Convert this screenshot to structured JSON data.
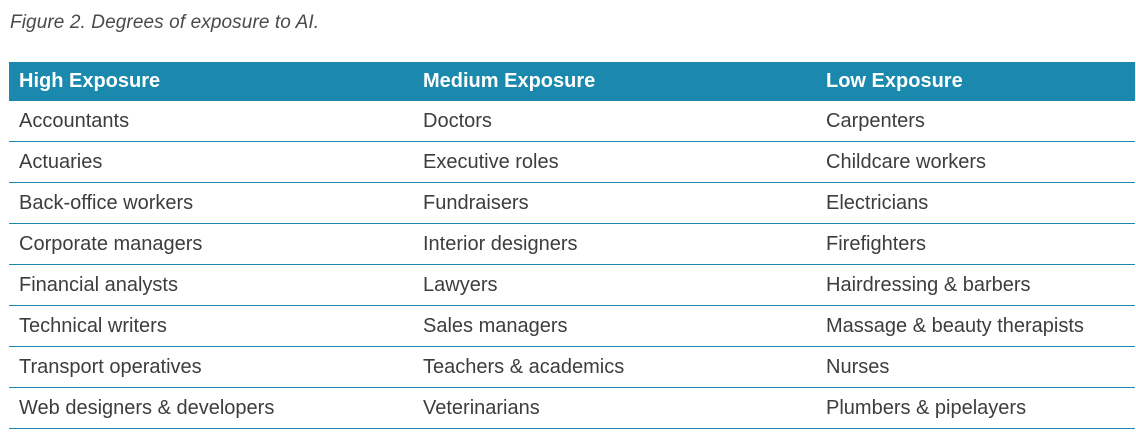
{
  "caption": "Figure 2. Degrees of exposure to AI.",
  "accent_color": "#1b88ad",
  "table": {
    "headers": [
      "High Exposure",
      "Medium Exposure",
      "Low Exposure"
    ],
    "rows": [
      [
        "Accountants",
        "Doctors",
        "Carpenters"
      ],
      [
        "Actuaries",
        "Executive roles",
        "Childcare workers"
      ],
      [
        "Back-office workers",
        "Fundraisers",
        "Electricians"
      ],
      [
        "Corporate managers",
        "Interior designers",
        "Firefighters"
      ],
      [
        "Financial analysts",
        "Lawyers",
        "Hairdressing & barbers"
      ],
      [
        "Technical writers",
        "Sales managers",
        "Massage & beauty therapists"
      ],
      [
        "Transport operatives",
        "Teachers & academics",
        "Nurses"
      ],
      [
        "Web designers & developers",
        "Veterinarians",
        "Plumbers & pipelayers"
      ]
    ]
  }
}
